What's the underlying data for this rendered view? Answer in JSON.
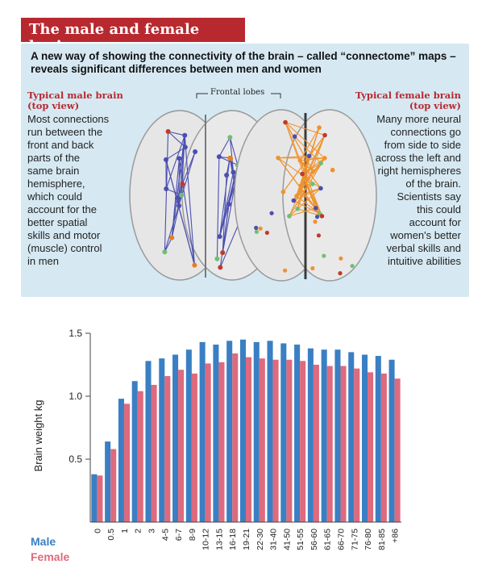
{
  "header": {
    "title": "The male and female brain",
    "subtitle": "A new way of showing the connectivity of the brain – called “connectome” maps – reveals significant differences between men and women"
  },
  "male_panel": {
    "heading_line1": "Typical male brain",
    "heading_line2": "(top view)",
    "lines": [
      "Most connections",
      "run between the",
      "front and back",
      "parts of the",
      "same brain",
      "hemisphere,",
      "which could",
      "account for the",
      "better spatial",
      "skills and motor",
      "(muscle) control",
      "in men"
    ]
  },
  "female_panel": {
    "heading_line1": "Typical female brain",
    "heading_line2": "(top view)",
    "lines": [
      "Many more neural",
      "connections go",
      "from side to side",
      "across the left and",
      "right hemispheres",
      "of the brain.",
      "Scientists say",
      "this could",
      "account for",
      "women's better",
      "verbal skills and",
      "intuitive abilities"
    ]
  },
  "frontal_lobes_label": "Frontal lobes",
  "colors": {
    "title_red": "#b8292f",
    "panel_blue": "#d6e9f3",
    "male_blue": "#3a7fc3",
    "female_pink": "#de6a7d",
    "male_connection": "#4a4fb0",
    "female_connection": "#f0922e"
  },
  "chart_data": {
    "type": "bar",
    "ylabel": "Brain weight kg",
    "xlabel": "",
    "ylim": [
      0,
      1.5
    ],
    "yticks": [
      "0.5",
      "1.0",
      "1.5"
    ],
    "grid": false,
    "legend": "bottom-left",
    "categories": [
      "0",
      "0.5",
      "1",
      "2",
      "3",
      "4-5",
      "6-7",
      "8-9",
      "10-12",
      "13-15",
      "16-18",
      "19-21",
      "22-30",
      "31-40",
      "41-50",
      "51-55",
      "56-60",
      "61-65",
      "66-70",
      "71-75",
      "76-80",
      "81-85",
      "+86"
    ],
    "series": [
      {
        "name": "Male",
        "color": "#3a7fc3",
        "values": [
          0.38,
          0.64,
          0.98,
          1.12,
          1.28,
          1.3,
          1.33,
          1.37,
          1.43,
          1.41,
          1.44,
          1.45,
          1.43,
          1.44,
          1.42,
          1.41,
          1.38,
          1.37,
          1.37,
          1.35,
          1.33,
          1.32,
          1.29
        ]
      },
      {
        "name": "Female",
        "color": "#de6a7d",
        "values": [
          0.37,
          0.58,
          0.94,
          1.04,
          1.09,
          1.16,
          1.21,
          1.18,
          1.26,
          1.27,
          1.34,
          1.31,
          1.3,
          1.29,
          1.29,
          1.28,
          1.25,
          1.24,
          1.24,
          1.22,
          1.19,
          1.18,
          1.14
        ]
      }
    ]
  }
}
